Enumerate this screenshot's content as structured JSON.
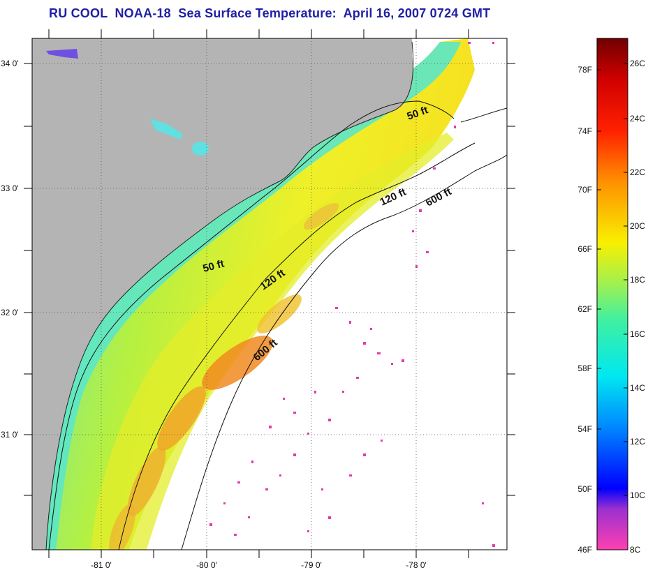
{
  "title": "RU COOL  NOAA-18  Sea Surface Temperature:  April 16, 2007 0724 GMT",
  "map": {
    "lat_labels": [
      "34 0'",
      "33 0'",
      "32 0'",
      "31 0'"
    ],
    "lon_labels": [
      "-81 0'",
      "-80 0'",
      "-79 0'",
      "-78 0'"
    ],
    "depth_contours": [
      {
        "name": "50 ft",
        "label": "50 ft"
      },
      {
        "name": "120 ft",
        "label": "120 ft"
      },
      {
        "name": "600 ft",
        "label": "600 ft"
      }
    ],
    "colors": {
      "land": "#b4b4b4",
      "shelf_cool": "#5de6b8",
      "mid_shelf": "#c8f23c",
      "warm": "#f0e428",
      "gulfstream": "#f07818",
      "cloud_cold": "#e63ca8"
    }
  },
  "colorbar": {
    "fahrenheit_labels": [
      "78F",
      "74F",
      "70F",
      "66F",
      "62F",
      "58F",
      "54F",
      "50F",
      "46F"
    ],
    "celsius_labels": [
      "26C",
      "24C",
      "22C",
      "20C",
      "18C",
      "16C",
      "14C",
      "12C",
      "10C",
      "8C"
    ],
    "range_c": [
      8,
      27
    ]
  }
}
